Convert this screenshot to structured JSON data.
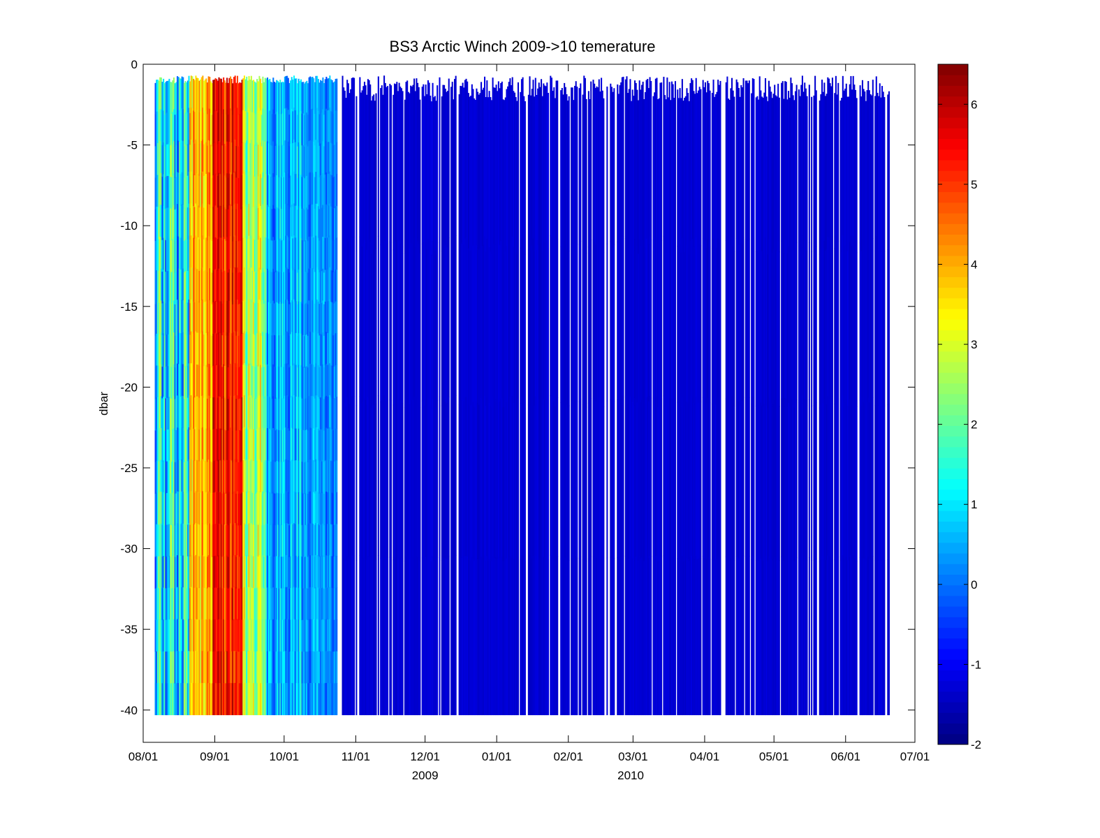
{
  "chart_data": {
    "type": "heatmap",
    "title": "BS3 Arctic Winch 2009->10  temerature",
    "xlabel": "",
    "ylabel": "dbar",
    "x_ticks": [
      {
        "date": "2009-08-01",
        "label": "08/01"
      },
      {
        "date": "2009-09-01",
        "label": "09/01"
      },
      {
        "date": "2009-10-01",
        "label": "10/01"
      },
      {
        "date": "2009-11-01",
        "label": "11/01"
      },
      {
        "date": "2009-12-01",
        "label": "12/01"
      },
      {
        "date": "2010-01-01",
        "label": "01/01"
      },
      {
        "date": "2010-02-01",
        "label": "02/01"
      },
      {
        "date": "2010-03-01",
        "label": "03/01"
      },
      {
        "date": "2010-04-01",
        "label": "04/01"
      },
      {
        "date": "2010-05-01",
        "label": "05/01"
      },
      {
        "date": "2010-06-01",
        "label": "06/01"
      },
      {
        "date": "2010-07-01",
        "label": "07/01"
      }
    ],
    "year_labels": [
      {
        "date": "2009-12-01",
        "label": "2009"
      },
      {
        "date": "2010-02-28",
        "label": "2010"
      }
    ],
    "xlim": [
      "2009-08-01",
      "2010-07-01"
    ],
    "y_ticks": [
      0,
      -5,
      -10,
      -15,
      -20,
      -25,
      -30,
      -35,
      -40
    ],
    "ylim": [
      -42,
      0
    ],
    "colorbar": {
      "colormap": "jet",
      "range": [
        -2,
        6.5
      ],
      "ticks": [
        -2,
        -1,
        0,
        1,
        2,
        3,
        4,
        5,
        6
      ]
    },
    "grid": false,
    "depth_range": [
      -40.3,
      -0.7
    ],
    "profiles": [
      {
        "start": "2009-08-06",
        "end": "2009-08-21",
        "mean_temp": 1.2,
        "spread": 2.6
      },
      {
        "start": "2009-08-21",
        "end": "2009-08-31",
        "mean_temp": 3.8,
        "spread": 1.8
      },
      {
        "start": "2009-08-31",
        "end": "2009-09-13",
        "mean_temp": 5.3,
        "spread": 1.6
      },
      {
        "start": "2009-09-13",
        "end": "2009-09-23",
        "mean_temp": 2.6,
        "spread": 2.2
      },
      {
        "start": "2009-09-23",
        "end": "2009-10-10",
        "mean_temp": 0.6,
        "spread": 1.6
      },
      {
        "start": "2009-10-10",
        "end": "2009-10-24",
        "mean_temp": 0.4,
        "spread": 1.4
      },
      {
        "start": "2009-10-26",
        "end": "2010-06-20",
        "mean_temp": -1.3,
        "spread": 0.2
      }
    ]
  }
}
